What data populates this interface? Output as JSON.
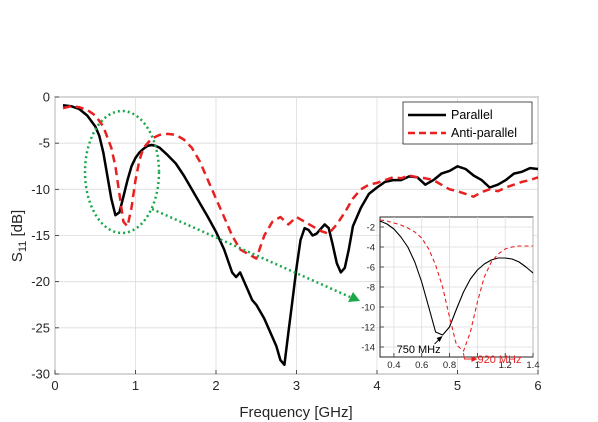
{
  "chart_data": [
    {
      "type": "line",
      "xlabel": "Frequency [GHz]",
      "ylabel_main": "S",
      "ylabel_sub": "11",
      "ylabel_unit": " [dB]",
      "xlim": [
        0,
        6
      ],
      "ylim": [
        -30,
        0
      ],
      "xticks": [
        0,
        1,
        2,
        3,
        4,
        5,
        6
      ],
      "yticks": [
        0,
        -5,
        -10,
        -15,
        -20,
        -25,
        -30
      ],
      "grid": true,
      "legend_position": "top-right",
      "series": [
        {
          "name": "Parallel",
          "color": "#000000",
          "style": "solid",
          "x": [
            0.1,
            0.2,
            0.3,
            0.4,
            0.5,
            0.55,
            0.6,
            0.65,
            0.7,
            0.75,
            0.8,
            0.85,
            0.9,
            0.95,
            1.0,
            1.05,
            1.1,
            1.15,
            1.2,
            1.25,
            1.3,
            1.4,
            1.5,
            1.6,
            1.7,
            1.8,
            1.9,
            2.0,
            2.1,
            2.2,
            2.25,
            2.3,
            2.35,
            2.4,
            2.45,
            2.5,
            2.6,
            2.7,
            2.75,
            2.8,
            2.85,
            2.9,
            2.95,
            3.0,
            3.05,
            3.1,
            3.15,
            3.2,
            3.25,
            3.3,
            3.35,
            3.4,
            3.45,
            3.5,
            3.55,
            3.6,
            3.65,
            3.7,
            3.8,
            3.9,
            4.0,
            4.1,
            4.2,
            4.3,
            4.4,
            4.5,
            4.6,
            4.7,
            4.8,
            4.9,
            5.0,
            5.1,
            5.2,
            5.3,
            5.4,
            5.5,
            5.6,
            5.7,
            5.8,
            5.9,
            6.0
          ],
          "y": [
            -0.9,
            -1.0,
            -1.3,
            -2.0,
            -3.2,
            -4.2,
            -6.0,
            -8.5,
            -11.0,
            -12.8,
            -12.5,
            -10.8,
            -9.0,
            -7.5,
            -6.6,
            -6.0,
            -5.6,
            -5.3,
            -5.2,
            -5.3,
            -5.5,
            -6.3,
            -7.2,
            -8.5,
            -10.0,
            -11.5,
            -13.0,
            -14.6,
            -16.5,
            -19.0,
            -19.5,
            -19.0,
            -20.0,
            -21.0,
            -22.0,
            -22.5,
            -24.0,
            -26.0,
            -27.0,
            -28.5,
            -29.0,
            -25.5,
            -22.0,
            -18.5,
            -15.5,
            -14.2,
            -14.4,
            -15.0,
            -14.8,
            -14.3,
            -13.8,
            -14.2,
            -16.0,
            -18.0,
            -19.0,
            -18.5,
            -16.5,
            -14.0,
            -12.0,
            -10.5,
            -9.8,
            -9.2,
            -9.0,
            -9.0,
            -8.6,
            -8.7,
            -9.5,
            -9.0,
            -8.3,
            -8.0,
            -7.5,
            -7.8,
            -8.5,
            -9.0,
            -9.8,
            -9.5,
            -9.0,
            -8.3,
            -8.1,
            -7.7,
            -7.8
          ]
        },
        {
          "name": "Anti-parallel",
          "color": "#e82020",
          "style": "dashed",
          "x": [
            0.1,
            0.2,
            0.3,
            0.4,
            0.5,
            0.6,
            0.7,
            0.75,
            0.8,
            0.85,
            0.9,
            0.95,
            1.0,
            1.05,
            1.1,
            1.2,
            1.3,
            1.4,
            1.5,
            1.6,
            1.7,
            1.8,
            1.9,
            2.0,
            2.1,
            2.2,
            2.3,
            2.4,
            2.5,
            2.6,
            2.7,
            2.8,
            2.9,
            3.0,
            3.1,
            3.2,
            3.3,
            3.4,
            3.5,
            3.6,
            3.7,
            3.8,
            3.9,
            4.0,
            4.1,
            4.2,
            4.3,
            4.4,
            4.5,
            4.6,
            4.7,
            4.8,
            4.9,
            5.0,
            5.1,
            5.2,
            5.3,
            5.4,
            5.5,
            5.6,
            5.7,
            5.8,
            5.9,
            6.0
          ],
          "y": [
            -1.2,
            -1.0,
            -1.1,
            -1.4,
            -2.0,
            -3.2,
            -5.5,
            -7.5,
            -10.5,
            -13.5,
            -14.0,
            -12.0,
            -9.0,
            -6.8,
            -5.5,
            -4.5,
            -4.1,
            -4.0,
            -4.1,
            -4.6,
            -5.5,
            -7.0,
            -9.0,
            -11.0,
            -13.0,
            -15.0,
            -16.5,
            -17.0,
            -17.5,
            -15.0,
            -13.5,
            -13.0,
            -13.8,
            -13.0,
            -13.5,
            -14.0,
            -14.5,
            -14.8,
            -13.8,
            -12.5,
            -11.0,
            -10.0,
            -9.5,
            -9.3,
            -9.0,
            -8.7,
            -8.8,
            -8.5,
            -8.7,
            -8.8,
            -9.0,
            -9.5,
            -10.0,
            -10.2,
            -10.5,
            -10.8,
            -10.3,
            -10.0,
            -10.2,
            -9.8,
            -9.5,
            -9.2,
            -9.0,
            -8.7
          ]
        }
      ]
    },
    {
      "type": "line",
      "role": "inset",
      "xlim": [
        0.3,
        1.4
      ],
      "ylim": [
        -15,
        -1
      ],
      "xticks": [
        0.4,
        0.6,
        0.8,
        1,
        1.2,
        1.4
      ],
      "yticks": [
        -2,
        -4,
        -6,
        -8,
        -10,
        -12,
        -14
      ],
      "series": [
        {
          "name": "Parallel",
          "color": "#000000",
          "style": "solid",
          "x": [
            0.3,
            0.35,
            0.4,
            0.45,
            0.5,
            0.55,
            0.6,
            0.65,
            0.7,
            0.75,
            0.8,
            0.85,
            0.9,
            0.95,
            1.0,
            1.05,
            1.1,
            1.15,
            1.2,
            1.25,
            1.3,
            1.35,
            1.4
          ],
          "y": [
            -1.4,
            -1.7,
            -2.2,
            -3.0,
            -4.0,
            -5.5,
            -7.5,
            -10.0,
            -12.5,
            -12.8,
            -12.0,
            -10.2,
            -8.5,
            -7.2,
            -6.3,
            -5.7,
            -5.3,
            -5.1,
            -5.1,
            -5.2,
            -5.5,
            -6.0,
            -6.6
          ]
        },
        {
          "name": "Anti-parallel",
          "color": "#e82020",
          "style": "dashed",
          "x": [
            0.3,
            0.35,
            0.4,
            0.45,
            0.5,
            0.55,
            0.6,
            0.65,
            0.7,
            0.75,
            0.8,
            0.85,
            0.9,
            0.95,
            1.0,
            1.05,
            1.1,
            1.15,
            1.2,
            1.25,
            1.3,
            1.35,
            1.4
          ],
          "y": [
            -1.3,
            -1.4,
            -1.6,
            -1.8,
            -2.1,
            -2.5,
            -3.1,
            -4.2,
            -5.8,
            -8.0,
            -11.0,
            -13.8,
            -14.4,
            -12.5,
            -9.5,
            -7.0,
            -5.5,
            -4.7,
            -4.2,
            -4.0,
            -3.9,
            -3.9,
            -3.9
          ]
        }
      ],
      "annotations": [
        {
          "text": "750 MHz",
          "color": "#000000",
          "x": 0.75,
          "y": -12.8
        },
        {
          "text": "920 MHz",
          "color": "#e82020",
          "x": 0.9,
          "y": -14.4
        }
      ]
    }
  ]
}
